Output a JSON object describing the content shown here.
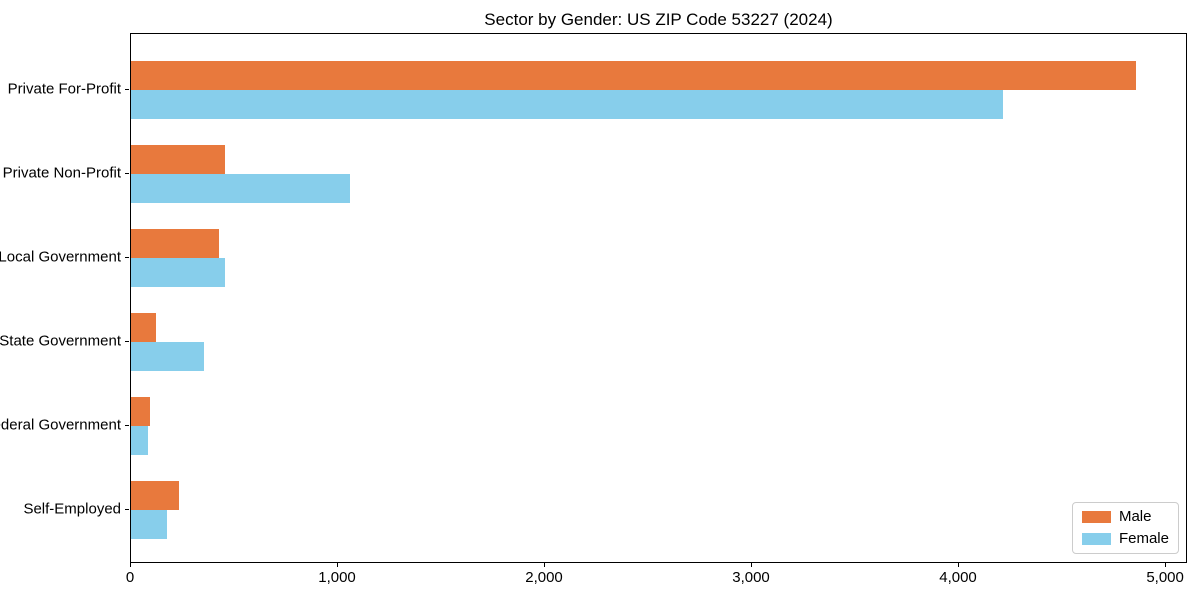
{
  "chart_data": {
    "type": "bar",
    "orientation": "horizontal",
    "title": "Sector by Gender: US ZIP Code 53227 (2024)",
    "categories": [
      "Private For-Profit",
      "Private Non-Profit",
      "Local Government",
      "State Government",
      "Federal Government",
      "Self-Employed"
    ],
    "series": [
      {
        "name": "Male",
        "color": "#e8793d",
        "values": [
          4855,
          455,
          425,
          120,
          90,
          230
        ]
      },
      {
        "name": "Female",
        "color": "#87ceeb",
        "values": [
          4210,
          1060,
          455,
          350,
          80,
          175
        ]
      }
    ],
    "xlabel": "",
    "ylabel": "",
    "x_ticks": [
      0,
      1000,
      2000,
      3000,
      4000,
      5000
    ],
    "x_tick_labels": [
      "0",
      "1,000",
      "2,000",
      "3,000",
      "4,000",
      "5,000"
    ],
    "xlim": [
      0,
      5106
    ],
    "grid": false,
    "legend": {
      "position": "lower right",
      "entries": [
        "Male",
        "Female"
      ]
    }
  }
}
